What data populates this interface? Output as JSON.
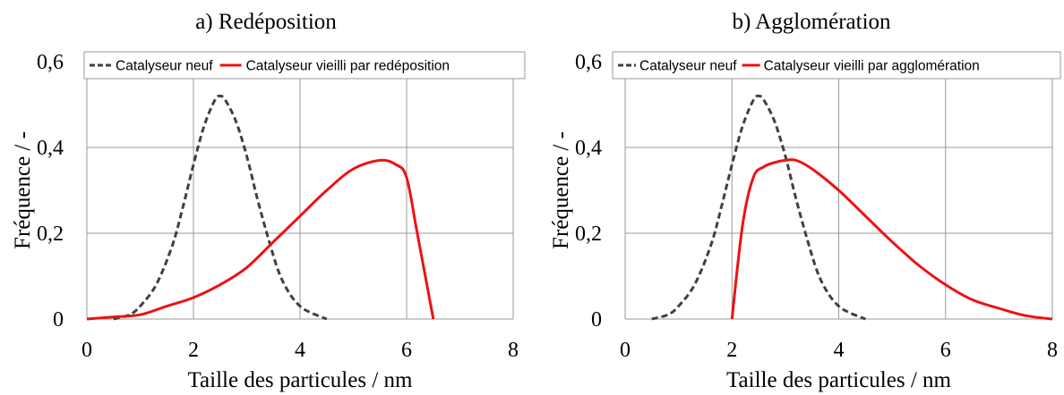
{
  "chart_data": [
    {
      "type": "line",
      "title": "a) Redéposition",
      "xlabel": "Taille des particules / nm",
      "ylabel": "Fréquence / -",
      "xlim": [
        0,
        8
      ],
      "ylim": [
        0,
        0.6
      ],
      "xticks": [
        0,
        2,
        4,
        6,
        8
      ],
      "yticks": [
        0,
        0.2,
        0.4,
        0.6
      ],
      "xtick_labels": [
        "0",
        "2",
        "4",
        "6",
        "8"
      ],
      "ytick_labels": [
        "0",
        "0,2",
        "0,4",
        "0,6"
      ],
      "grid": true,
      "legend_position": "top",
      "series": [
        {
          "name": "Catalyseur neuf",
          "color": "#404040",
          "dash": "dashed",
          "x": [
            0.5,
            0.8,
            1.0,
            1.3,
            1.6,
            1.8,
            2.0,
            2.2,
            2.4,
            2.5,
            2.6,
            2.8,
            3.0,
            3.2,
            3.4,
            3.6,
            3.8,
            4.0,
            4.2,
            4.5
          ],
          "y": [
            0.0,
            0.01,
            0.03,
            0.08,
            0.17,
            0.26,
            0.36,
            0.45,
            0.51,
            0.52,
            0.51,
            0.46,
            0.38,
            0.28,
            0.19,
            0.11,
            0.06,
            0.03,
            0.015,
            0.0
          ]
        },
        {
          "name": "Catalyseur vieilli par redéposition",
          "color": "#ee1111",
          "dash": "solid",
          "x": [
            0.0,
            0.5,
            1.0,
            1.5,
            2.0,
            2.5,
            3.0,
            3.5,
            4.0,
            4.5,
            5.0,
            5.5,
            5.8,
            6.0,
            6.2,
            6.5
          ],
          "y": [
            0.0,
            0.005,
            0.01,
            0.03,
            0.05,
            0.08,
            0.12,
            0.18,
            0.24,
            0.3,
            0.35,
            0.37,
            0.36,
            0.33,
            0.2,
            0.0
          ]
        }
      ]
    },
    {
      "type": "line",
      "title": "b) Agglomération",
      "xlabel": "Taille des particules / nm",
      "ylabel": "Fréquence / -",
      "xlim": [
        0,
        8
      ],
      "ylim": [
        0,
        0.6
      ],
      "xticks": [
        0,
        2,
        4,
        6,
        8
      ],
      "yticks": [
        0,
        0.2,
        0.4,
        0.6
      ],
      "xtick_labels": [
        "0",
        "2",
        "4",
        "6",
        "8"
      ],
      "ytick_labels": [
        "0",
        "0,2",
        "0,4",
        "0,6"
      ],
      "grid": true,
      "legend_position": "top",
      "series": [
        {
          "name": "Catalyseur neuf",
          "color": "#404040",
          "dash": "dashed",
          "x": [
            0.5,
            0.8,
            1.0,
            1.3,
            1.6,
            1.8,
            2.0,
            2.2,
            2.4,
            2.5,
            2.6,
            2.8,
            3.0,
            3.2,
            3.4,
            3.6,
            3.8,
            4.0,
            4.2,
            4.5
          ],
          "y": [
            0.0,
            0.01,
            0.03,
            0.08,
            0.17,
            0.26,
            0.36,
            0.45,
            0.51,
            0.52,
            0.51,
            0.46,
            0.38,
            0.28,
            0.19,
            0.11,
            0.06,
            0.03,
            0.015,
            0.0
          ]
        },
        {
          "name": "Catalyseur vieilli par agglomération",
          "color": "#ee1111",
          "dash": "solid",
          "x": [
            2.0,
            2.2,
            2.4,
            2.6,
            2.8,
            3.0,
            3.2,
            3.5,
            4.0,
            4.5,
            5.0,
            5.5,
            6.0,
            6.5,
            7.0,
            7.5,
            8.0
          ],
          "y": [
            0.0,
            0.22,
            0.33,
            0.355,
            0.365,
            0.37,
            0.37,
            0.35,
            0.3,
            0.24,
            0.18,
            0.125,
            0.08,
            0.045,
            0.025,
            0.008,
            0.0
          ]
        }
      ]
    }
  ]
}
